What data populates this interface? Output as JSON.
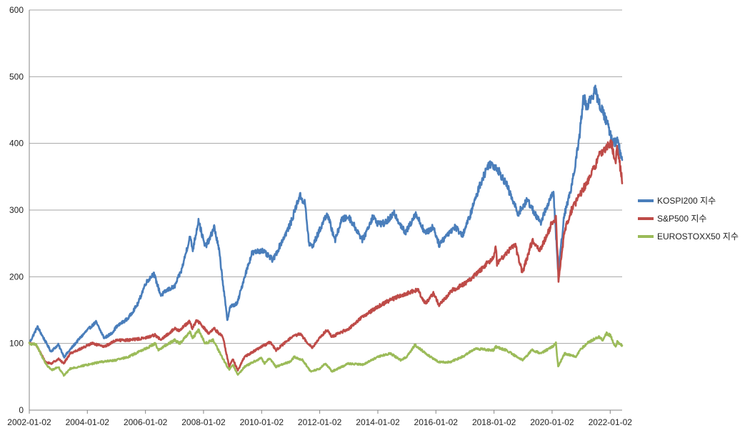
{
  "chart_data": {
    "type": "line",
    "title": "",
    "xlabel": "",
    "ylabel": "",
    "ylim": [
      0,
      600
    ],
    "yticks": [
      0,
      100,
      200,
      300,
      400,
      500,
      600
    ],
    "xlim": [
      "2002-01-02",
      "2022-06-01"
    ],
    "xtick_labels": [
      "2002-01-02",
      "2004-01-02",
      "2006-01-02",
      "2008-01-02",
      "2010-01-02",
      "2012-01-02",
      "2014-01-02",
      "2016-01-02",
      "2018-01-02",
      "2020-01-02",
      "2022-01-02"
    ],
    "grid": "horizontal",
    "legend_position": "right",
    "series": [
      {
        "name": "KOSPI200 지수",
        "color": "#4a7ebb",
        "points": [
          [
            "2002-01-02",
            100
          ],
          [
            "2002-04-15",
            125
          ],
          [
            "2002-07-01",
            108
          ],
          [
            "2002-10-01",
            88
          ],
          [
            "2003-01-02",
            98
          ],
          [
            "2003-03-17",
            80
          ],
          [
            "2003-07-01",
            95
          ],
          [
            "2003-10-01",
            108
          ],
          [
            "2004-01-02",
            120
          ],
          [
            "2004-04-20",
            132
          ],
          [
            "2004-08-01",
            108
          ],
          [
            "2004-11-01",
            115
          ],
          [
            "2005-01-02",
            125
          ],
          [
            "2005-06-01",
            138
          ],
          [
            "2005-10-01",
            160
          ],
          [
            "2006-01-02",
            190
          ],
          [
            "2006-04-15",
            205
          ],
          [
            "2006-07-15",
            172
          ],
          [
            "2006-10-01",
            180
          ],
          [
            "2007-01-02",
            185
          ],
          [
            "2007-04-01",
            210
          ],
          [
            "2007-07-15",
            260
          ],
          [
            "2007-08-20",
            240
          ],
          [
            "2007-10-31",
            285
          ],
          [
            "2008-01-20",
            245
          ],
          [
            "2008-03-15",
            255
          ],
          [
            "2008-05-15",
            275
          ],
          [
            "2008-07-15",
            240
          ],
          [
            "2008-10-27",
            135
          ],
          [
            "2008-12-01",
            155
          ],
          [
            "2009-03-01",
            160
          ],
          [
            "2009-06-01",
            200
          ],
          [
            "2009-09-01",
            235
          ],
          [
            "2010-01-02",
            240
          ],
          [
            "2010-05-25",
            225
          ],
          [
            "2010-09-01",
            250
          ],
          [
            "2011-01-02",
            280
          ],
          [
            "2011-04-25",
            322
          ],
          [
            "2011-07-01",
            310
          ],
          [
            "2011-08-20",
            250
          ],
          [
            "2011-10-01",
            245
          ],
          [
            "2012-01-02",
            270
          ],
          [
            "2012-04-01",
            295
          ],
          [
            "2012-07-15",
            255
          ],
          [
            "2012-10-01",
            285
          ],
          [
            "2013-01-02",
            290
          ],
          [
            "2013-06-25",
            255
          ],
          [
            "2013-10-30",
            290
          ],
          [
            "2014-01-02",
            280
          ],
          [
            "2014-04-01",
            280
          ],
          [
            "2014-07-30",
            295
          ],
          [
            "2014-12-15",
            265
          ],
          [
            "2015-04-20",
            295
          ],
          [
            "2015-08-24",
            265
          ],
          [
            "2015-12-01",
            275
          ],
          [
            "2016-02-12",
            248
          ],
          [
            "2016-06-01",
            265
          ],
          [
            "2016-09-01",
            275
          ],
          [
            "2016-12-01",
            262
          ],
          [
            "2017-03-01",
            290
          ],
          [
            "2017-07-15",
            340
          ],
          [
            "2017-11-01",
            370
          ],
          [
            "2018-01-29",
            365
          ],
          [
            "2018-06-01",
            340
          ],
          [
            "2018-10-29",
            295
          ],
          [
            "2019-03-01",
            315
          ],
          [
            "2019-08-06",
            280
          ],
          [
            "2019-12-01",
            315
          ],
          [
            "2020-01-20",
            325
          ],
          [
            "2020-03-19",
            205
          ],
          [
            "2020-06-01",
            290
          ],
          [
            "2020-09-01",
            335
          ],
          [
            "2020-12-01",
            400
          ],
          [
            "2021-02-01",
            470
          ],
          [
            "2021-03-15",
            455
          ],
          [
            "2021-06-25",
            480
          ],
          [
            "2021-09-01",
            455
          ],
          [
            "2021-12-01",
            430
          ],
          [
            "2022-02-01",
            400
          ],
          [
            "2022-04-01",
            405
          ],
          [
            "2022-06-01",
            375
          ]
        ]
      },
      {
        "name": "S&P500 지수",
        "color": "#be4b48",
        "points": [
          [
            "2002-01-02",
            100
          ],
          [
            "2002-04-01",
            98
          ],
          [
            "2002-07-23",
            72
          ],
          [
            "2002-10-09",
            70
          ],
          [
            "2003-01-02",
            77
          ],
          [
            "2003-03-11",
            70
          ],
          [
            "2003-06-01",
            85
          ],
          [
            "2003-12-01",
            95
          ],
          [
            "2004-03-01",
            100
          ],
          [
            "2004-08-01",
            95
          ],
          [
            "2004-12-31",
            105
          ],
          [
            "2005-06-01",
            105
          ],
          [
            "2005-12-31",
            108
          ],
          [
            "2006-05-01",
            113
          ],
          [
            "2006-07-15",
            105
          ],
          [
            "2006-12-31",
            122
          ],
          [
            "2007-03-01",
            120
          ],
          [
            "2007-07-15",
            133
          ],
          [
            "2007-08-15",
            122
          ],
          [
            "2007-10-09",
            135
          ],
          [
            "2008-03-10",
            115
          ],
          [
            "2008-05-15",
            122
          ],
          [
            "2008-09-01",
            110
          ],
          [
            "2008-11-20",
            65
          ],
          [
            "2009-01-01",
            77
          ],
          [
            "2009-03-09",
            60
          ],
          [
            "2009-06-01",
            80
          ],
          [
            "2009-12-31",
            95
          ],
          [
            "2010-04-23",
            102
          ],
          [
            "2010-07-02",
            90
          ],
          [
            "2010-12-31",
            108
          ],
          [
            "2011-04-29",
            115
          ],
          [
            "2011-08-10",
            100
          ],
          [
            "2011-10-03",
            94
          ],
          [
            "2011-12-31",
            108
          ],
          [
            "2012-04-01",
            120
          ],
          [
            "2012-06-01",
            110
          ],
          [
            "2012-12-31",
            122
          ],
          [
            "2013-06-01",
            138
          ],
          [
            "2013-12-31",
            155
          ],
          [
            "2014-06-01",
            165
          ],
          [
            "2014-12-31",
            175
          ],
          [
            "2015-05-21",
            180
          ],
          [
            "2015-08-25",
            160
          ],
          [
            "2015-12-01",
            175
          ],
          [
            "2016-02-11",
            158
          ],
          [
            "2016-08-01",
            180
          ],
          [
            "2016-12-31",
            190
          ],
          [
            "2017-06-01",
            205
          ],
          [
            "2017-12-31",
            230
          ],
          [
            "2018-01-26",
            245
          ],
          [
            "2018-02-08",
            220
          ],
          [
            "2018-09-20",
            250
          ],
          [
            "2018-12-24",
            205
          ],
          [
            "2019-04-30",
            255
          ],
          [
            "2019-08-05",
            240
          ],
          [
            "2019-12-31",
            280
          ],
          [
            "2020-02-19",
            290
          ],
          [
            "2020-03-23",
            195
          ],
          [
            "2020-06-08",
            270
          ],
          [
            "2020-09-02",
            300
          ],
          [
            "2020-12-31",
            325
          ],
          [
            "2021-06-01",
            360
          ],
          [
            "2021-09-02",
            385
          ],
          [
            "2021-12-31",
            400
          ],
          [
            "2022-01-03",
            410
          ],
          [
            "2022-03-08",
            370
          ],
          [
            "2022-03-29",
            395
          ],
          [
            "2022-05-20",
            355
          ],
          [
            "2022-06-01",
            340
          ]
        ]
      },
      {
        "name": "EUROSTOXX50 지수",
        "color": "#9bbb59",
        "points": [
          [
            "2002-01-02",
            100
          ],
          [
            "2002-04-01",
            98
          ],
          [
            "2002-07-24",
            70
          ],
          [
            "2002-10-09",
            60
          ],
          [
            "2003-01-02",
            65
          ],
          [
            "2003-03-12",
            52
          ],
          [
            "2003-06-01",
            62
          ],
          [
            "2003-12-31",
            68
          ],
          [
            "2004-06-01",
            72
          ],
          [
            "2004-12-31",
            75
          ],
          [
            "2005-06-01",
            80
          ],
          [
            "2005-12-31",
            92
          ],
          [
            "2006-05-08",
            100
          ],
          [
            "2006-06-14",
            90
          ],
          [
            "2006-12-31",
            105
          ],
          [
            "2007-03-14",
            100
          ],
          [
            "2007-07-13",
            118
          ],
          [
            "2007-08-16",
            108
          ],
          [
            "2007-11-01",
            120
          ],
          [
            "2008-01-22",
            100
          ],
          [
            "2008-05-01",
            105
          ],
          [
            "2008-07-15",
            88
          ],
          [
            "2008-11-21",
            60
          ],
          [
            "2009-01-06",
            68
          ],
          [
            "2009-03-09",
            53
          ],
          [
            "2009-06-01",
            65
          ],
          [
            "2009-10-01",
            73
          ],
          [
            "2009-12-31",
            78
          ],
          [
            "2010-02-05",
            70
          ],
          [
            "2010-04-15",
            78
          ],
          [
            "2010-06-30",
            65
          ],
          [
            "2010-12-31",
            73
          ],
          [
            "2011-02-18",
            80
          ],
          [
            "2011-06-01",
            75
          ],
          [
            "2011-09-12",
            58
          ],
          [
            "2011-12-31",
            62
          ],
          [
            "2012-03-16",
            70
          ],
          [
            "2012-06-04",
            58
          ],
          [
            "2012-12-31",
            70
          ],
          [
            "2013-06-24",
            68
          ],
          [
            "2013-12-31",
            80
          ],
          [
            "2014-06-10",
            85
          ],
          [
            "2014-10-16",
            75
          ],
          [
            "2014-12-31",
            80
          ],
          [
            "2015-04-13",
            98
          ],
          [
            "2015-09-29",
            82
          ],
          [
            "2016-02-11",
            72
          ],
          [
            "2016-06-27",
            72
          ],
          [
            "2016-12-31",
            82
          ],
          [
            "2017-05-05",
            92
          ],
          [
            "2017-12-31",
            90
          ],
          [
            "2018-01-23",
            95
          ],
          [
            "2018-06-01",
            90
          ],
          [
            "2018-12-27",
            75
          ],
          [
            "2019-04-23",
            90
          ],
          [
            "2019-08-15",
            85
          ],
          [
            "2019-12-31",
            95
          ],
          [
            "2020-02-19",
            100
          ],
          [
            "2020-03-18",
            65
          ],
          [
            "2020-06-08",
            85
          ],
          [
            "2020-10-28",
            80
          ],
          [
            "2020-12-31",
            92
          ],
          [
            "2021-04-15",
            103
          ],
          [
            "2021-08-13",
            110
          ],
          [
            "2021-10-04",
            105
          ],
          [
            "2021-11-17",
            115
          ],
          [
            "2022-01-04",
            112
          ],
          [
            "2022-03-07",
            95
          ],
          [
            "2022-04-01",
            102
          ],
          [
            "2022-06-01",
            97
          ]
        ]
      }
    ]
  }
}
